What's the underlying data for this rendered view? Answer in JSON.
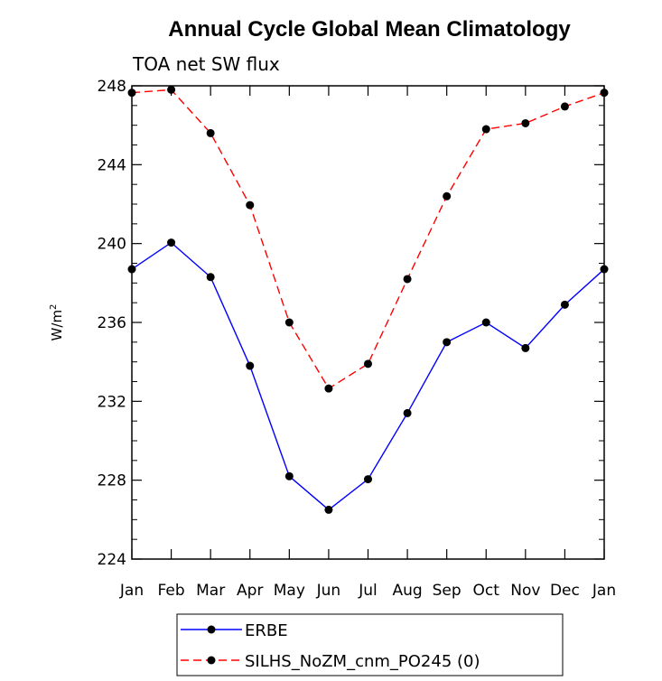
{
  "chart_data": {
    "type": "line",
    "title": "Annual Cycle Global Mean Climatology",
    "subtitle": "TOA net SW flux",
    "ylabel_base": "W/m",
    "ylabel_sup": "2",
    "categories": [
      "Jan",
      "Feb",
      "Mar",
      "Apr",
      "May",
      "Jun",
      "Jul",
      "Aug",
      "Sep",
      "Oct",
      "Nov",
      "Dec",
      "Jan"
    ],
    "ylim": [
      224,
      248
    ],
    "yticks": [
      224,
      228,
      232,
      236,
      240,
      244,
      248
    ],
    "yticks_labels": [
      "224",
      "228",
      "232",
      "236",
      "240",
      "244",
      "248"
    ],
    "legend_position": "bottom",
    "series": [
      {
        "name": "ERBE",
        "color": "#0000ff",
        "dash": "solid",
        "values": [
          238.7,
          240.05,
          238.3,
          233.8,
          228.2,
          226.5,
          228.05,
          231.4,
          235.0,
          236.0,
          234.7,
          236.9,
          238.7
        ]
      },
      {
        "name": "SILHS_NoZM_cnm_PO245 (0)",
        "color": "#ff0000",
        "dash": "dashed",
        "values": [
          247.65,
          247.8,
          245.6,
          241.95,
          236.0,
          232.65,
          233.9,
          238.2,
          242.4,
          245.8,
          246.1,
          246.95,
          247.65
        ]
      }
    ]
  }
}
